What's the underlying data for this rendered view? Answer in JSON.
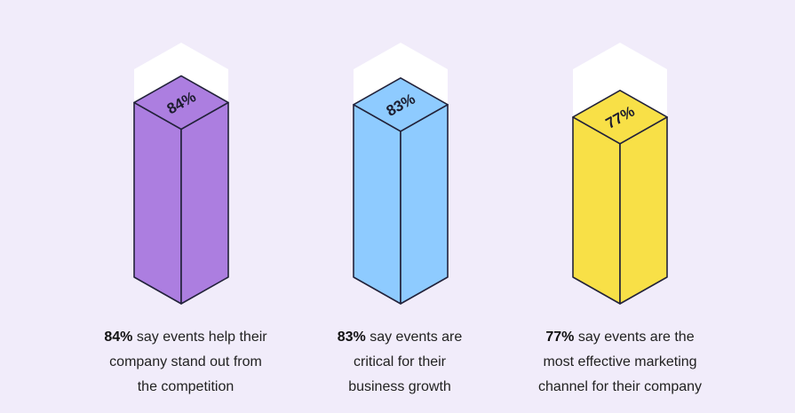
{
  "chart_data": {
    "type": "bar",
    "categories": [
      "84% say events help their company stand out from the competition",
      "83% say events are critical for their business growth",
      "77% say events are the most effective marketing channel for their company"
    ],
    "values": [
      84,
      83,
      77
    ],
    "ylim": [
      0,
      100
    ],
    "value_labels": [
      "84%",
      "83%",
      "77%"
    ],
    "colors": [
      "#ac7ee0",
      "#8ecbff",
      "#f8e047"
    ],
    "grid": false,
    "legend": "none"
  },
  "captions": [
    {
      "pct": "84%",
      "lines": [
        "say events help their",
        "company stand out from",
        "the competition"
      ]
    },
    {
      "pct": "83%",
      "lines": [
        "say events are",
        "critical for their",
        "business growth"
      ]
    },
    {
      "pct": "77%",
      "lines": [
        "say events are the",
        "most effective marketing",
        "channel for their company"
      ]
    }
  ]
}
